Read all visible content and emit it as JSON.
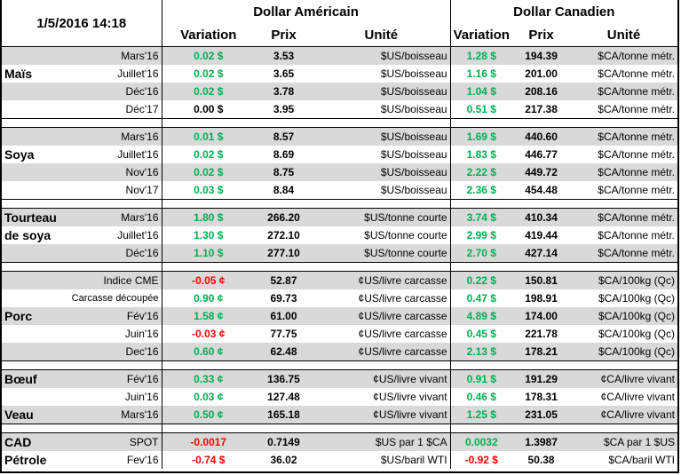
{
  "header": {
    "datetime": "1/5/2016 14:18",
    "usd_title": "Dollar Américain",
    "cad_title": "Dollar Canadien",
    "variation": "Variation",
    "prix": "Prix",
    "unite": "Unité"
  },
  "colors": {
    "positive": "#00b050",
    "negative": "#ff0000",
    "shade": "#d9d9d9"
  },
  "groups": [
    {
      "rows": [
        {
          "label": "",
          "contract": "Mars'16",
          "us_var": "0.02 $",
          "us_price": "3.53",
          "us_unit": "$US/boisseau",
          "ca_var": "1.28 $",
          "ca_price": "194.39",
          "ca_unit": "$CA/tonne métr.",
          "us_sign": "pos",
          "ca_sign": "pos"
        },
        {
          "label": "Maïs",
          "contract": "Juillet'16",
          "us_var": "0.02 $",
          "us_price": "3.65",
          "us_unit": "$US/boisseau",
          "ca_var": "1.16 $",
          "ca_price": "201.00",
          "ca_unit": "$CA/tonne métr.",
          "us_sign": "pos",
          "ca_sign": "pos"
        },
        {
          "label": "",
          "contract": "Déc'16",
          "us_var": "0.02 $",
          "us_price": "3.78",
          "us_unit": "$US/boisseau",
          "ca_var": "1.04 $",
          "ca_price": "208.16",
          "ca_unit": "$CA/tonne métr.",
          "us_sign": "pos",
          "ca_sign": "pos"
        },
        {
          "label": "",
          "contract": "Déc'17",
          "us_var": "0.00 $",
          "us_price": "3.95",
          "us_unit": "$US/boisseau",
          "ca_var": "0.51 $",
          "ca_price": "217.38",
          "ca_unit": "$CA/tonne métr.",
          "us_sign": "zero",
          "ca_sign": "pos"
        }
      ]
    },
    {
      "rows": [
        {
          "label": "",
          "contract": "Mars'16",
          "us_var": "0.01 $",
          "us_price": "8.57",
          "us_unit": "$US/boisseau",
          "ca_var": "1.69 $",
          "ca_price": "440.60",
          "ca_unit": "$CA/tonne métr.",
          "us_sign": "pos",
          "ca_sign": "pos"
        },
        {
          "label": "Soya",
          "contract": "Juillet'16",
          "us_var": "0.02 $",
          "us_price": "8.69",
          "us_unit": "$US/boisseau",
          "ca_var": "1.83 $",
          "ca_price": "446.77",
          "ca_unit": "$CA/tonne métr.",
          "us_sign": "pos",
          "ca_sign": "pos"
        },
        {
          "label": "",
          "contract": "Nov'16",
          "us_var": "0.02 $",
          "us_price": "8.75",
          "us_unit": "$US/boisseau",
          "ca_var": "2.22 $",
          "ca_price": "449.72",
          "ca_unit": "$CA/tonne métr.",
          "us_sign": "pos",
          "ca_sign": "pos"
        },
        {
          "label": "",
          "contract": "Nov'17",
          "us_var": "0.03 $",
          "us_price": "8.84",
          "us_unit": "$US/boisseau",
          "ca_var": "2.36 $",
          "ca_price": "454.48",
          "ca_unit": "$CA/tonne métr.",
          "us_sign": "pos",
          "ca_sign": "pos"
        }
      ]
    },
    {
      "rows": [
        {
          "label": "Tourteau",
          "contract": "Mars'16",
          "us_var": "1.80 $",
          "us_price": "266.20",
          "us_unit": "$US/tonne courte",
          "ca_var": "3.74 $",
          "ca_price": "410.34",
          "ca_unit": "$CA/tonne métr.",
          "us_sign": "pos",
          "ca_sign": "pos"
        },
        {
          "label": "de soya",
          "contract": "Juillet'16",
          "us_var": "1.30 $",
          "us_price": "272.10",
          "us_unit": "$US/tonne courte",
          "ca_var": "2.99 $",
          "ca_price": "419.44",
          "ca_unit": "$CA/tonne métr.",
          "us_sign": "pos",
          "ca_sign": "pos"
        },
        {
          "label": "",
          "contract": "Déc'16",
          "us_var": "1.10 $",
          "us_price": "277.10",
          "us_unit": "$US/tonne courte",
          "ca_var": "2.70 $",
          "ca_price": "427.14",
          "ca_unit": "$CA/tonne métr.",
          "us_sign": "pos",
          "ca_sign": "pos"
        }
      ]
    },
    {
      "rows": [
        {
          "label": "",
          "contract": "Indice CME",
          "us_var": "-0.05 ¢",
          "us_price": "52.87",
          "us_unit": "¢US/livre carcasse",
          "ca_var": "0.22 $",
          "ca_price": "150.81",
          "ca_unit": "$CA/100kg (Qc)",
          "us_sign": "neg",
          "ca_sign": "pos"
        },
        {
          "label": "",
          "contract": "Carcasse découpée",
          "us_var": "0.90 ¢",
          "us_price": "69.73",
          "us_unit": "¢US/livre carcasse",
          "ca_var": "0.47 $",
          "ca_price": "198.91",
          "ca_unit": "$CA/100kg (Qc)",
          "us_sign": "pos",
          "ca_sign": "pos"
        },
        {
          "label": "Porc",
          "contract": "Fév'16",
          "us_var": "1.58 ¢",
          "us_price": "61.00",
          "us_unit": "¢US/livre carcasse",
          "ca_var": "4.89 $",
          "ca_price": "174.00",
          "ca_unit": "$CA/100kg (Qc)",
          "us_sign": "pos",
          "ca_sign": "pos"
        },
        {
          "label": "",
          "contract": "Juin'16",
          "us_var": "-0.03 ¢",
          "us_price": "77.75",
          "us_unit": "¢US/livre carcasse",
          "ca_var": "0.45 $",
          "ca_price": "221.78",
          "ca_unit": "$CA/100kg (Qc)",
          "us_sign": "neg",
          "ca_sign": "pos"
        },
        {
          "label": "",
          "contract": "Dec'16",
          "us_var": "0.60 ¢",
          "us_price": "62.48",
          "us_unit": "¢US/livre carcasse",
          "ca_var": "2.13 $",
          "ca_price": "178.21",
          "ca_unit": "$CA/100kg (Qc)",
          "us_sign": "pos",
          "ca_sign": "pos"
        }
      ]
    },
    {
      "rows": [
        {
          "label": "Bœuf",
          "contract": "Fév'16",
          "us_var": "0.33 ¢",
          "us_price": "136.75",
          "us_unit": "¢US/livre vivant",
          "ca_var": "0.91 $",
          "ca_price": "191.29",
          "ca_unit": "¢CA/livre vivant",
          "us_sign": "pos",
          "ca_sign": "pos"
        },
        {
          "label": "",
          "contract": "Juin'16",
          "us_var": "0.03 ¢",
          "us_price": "127.48",
          "us_unit": "¢US/livre vivant",
          "ca_var": "0.46 $",
          "ca_price": "178.31",
          "ca_unit": "¢CA/livre vivant",
          "us_sign": "pos",
          "ca_sign": "pos"
        },
        {
          "label": "Veau",
          "contract": "Mars'16",
          "us_var": "0.50 ¢",
          "us_price": "165.18",
          "us_unit": "¢US/livre vivant",
          "ca_var": "1.25 $",
          "ca_price": "231.05",
          "ca_unit": "¢CA/livre vivant",
          "us_sign": "pos",
          "ca_sign": "pos"
        }
      ]
    },
    {
      "rows": [
        {
          "label": "CAD",
          "contract": "SPOT",
          "us_var": "-0.0017",
          "us_price": "0.7149",
          "us_unit": "$US par 1 $CA",
          "ca_var": "0.0032",
          "ca_price": "1.3987",
          "ca_unit": "$CA par 1 $US",
          "us_sign": "neg",
          "ca_sign": "pos"
        },
        {
          "label": "Pétrole",
          "contract": "Fev'16",
          "us_var": "-0.74 $",
          "us_price": "36.02",
          "us_unit": "$US/baril WTI",
          "ca_var": "-0.92 $",
          "ca_price": "50.38",
          "ca_unit": "$CA/baril WTI",
          "us_sign": "neg",
          "ca_sign": "neg"
        }
      ]
    }
  ]
}
